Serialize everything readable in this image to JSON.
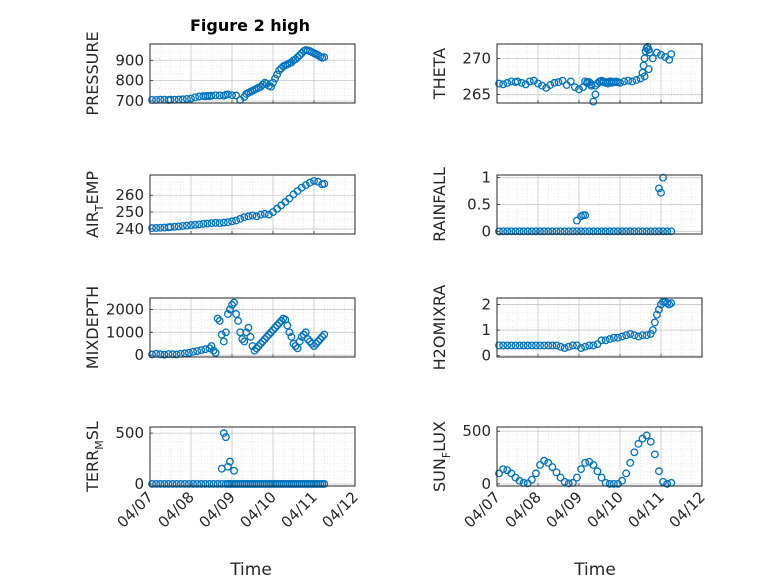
{
  "figure": {
    "title": "Figure 2 high",
    "marker_color": "#0072BD",
    "x_tick_labels": [
      "04/07",
      "04/08",
      "04/09",
      "04/10",
      "04/11",
      "04/12"
    ],
    "x_axis_label": "Time"
  },
  "chart_data": [
    {
      "type": "scatter",
      "name_label": "PRESSURE",
      "ylim": [
        690,
        980
      ],
      "yticks": [
        700,
        800,
        900
      ],
      "grid": true,
      "x": [
        0.1,
        0.3,
        0.5,
        0.7,
        0.9,
        1.0,
        1.2,
        1.4,
        1.6,
        1.8,
        2.0,
        2.2,
        2.4,
        2.6,
        2.7,
        2.8,
        2.9,
        3.0,
        3.2,
        3.4,
        3.6,
        3.7,
        3.8,
        4.0,
        4.2,
        4.4,
        4.6,
        4.7,
        4.8,
        4.9,
        5.0,
        5.1,
        5.2,
        5.3,
        5.4,
        5.5,
        5.6,
        5.7,
        5.8,
        5.9,
        6.0,
        6.1,
        6.2,
        6.3,
        6.4,
        6.5,
        6.6,
        6.7,
        6.8,
        6.9,
        7.0,
        7.1,
        7.2,
        7.3,
        7.4,
        7.5,
        7.6,
        7.7,
        7.8,
        7.9,
        8.0,
        8.1,
        8.2,
        8.3,
        8.4,
        8.5
      ],
      "y": [
        705,
        705,
        706,
        706,
        705,
        706,
        706,
        707,
        708,
        710,
        712,
        718,
        722,
        724,
        723,
        725,
        724,
        726,
        728,
        727,
        726,
        730,
        732,
        728,
        727,
        705,
        720,
        735,
        740,
        745,
        750,
        755,
        760,
        765,
        770,
        780,
        790,
        785,
        775,
        770,
        790,
        810,
        830,
        850,
        860,
        870,
        875,
        880,
        885,
        890,
        900,
        905,
        915,
        925,
        935,
        945,
        950,
        948,
        945,
        940,
        935,
        930,
        925,
        918,
        912,
        915
      ]
    },
    {
      "type": "scatter",
      "name_label": "THETA",
      "ylim": [
        263.8,
        272
      ],
      "yticks": [
        265,
        270
      ],
      "grid": true,
      "x": [
        0.1,
        0.3,
        0.5,
        0.7,
        0.9,
        1.0,
        1.2,
        1.4,
        1.6,
        1.8,
        2.0,
        2.2,
        2.4,
        2.6,
        2.8,
        3.0,
        3.2,
        3.4,
        3.6,
        3.8,
        4.0,
        4.2,
        4.4,
        4.6,
        4.8,
        5.0,
        5.2,
        5.4,
        5.6,
        5.8,
        6.0,
        6.2,
        6.4,
        6.6,
        6.8,
        7.0,
        7.2,
        7.4,
        7.6,
        7.8,
        8.0,
        8.2,
        8.4,
        8.5,
        4.3,
        4.4,
        4.5,
        4.6,
        4.7,
        4.8,
        4.9,
        5.0,
        5.1,
        5.2,
        5.3,
        5.4,
        5.5,
        5.6,
        5.7,
        5.8,
        5.9,
        7.1,
        7.15,
        7.2,
        7.25,
        7.3,
        7.35,
        7.4,
        7.45
      ],
      "y": [
        266.5,
        266.4,
        266.6,
        266.8,
        266.7,
        266.8,
        266.6,
        266.4,
        266.8,
        266.9,
        266.5,
        266.2,
        265.9,
        266.3,
        266.6,
        266.7,
        266.9,
        266.3,
        266.8,
        266.0,
        265.7,
        266.0,
        266.7,
        266.4,
        266.2,
        266.7,
        266.8,
        266.5,
        266.8,
        266.7,
        266.6,
        266.8,
        266.9,
        266.8,
        267.0,
        267.2,
        267.5,
        268.5,
        270.0,
        270.8,
        270.5,
        270.2,
        269.8,
        270.6,
        266.8,
        266.6,
        266.7,
        266.2,
        264.0,
        265.0,
        266.5,
        266.8,
        266.9,
        266.7,
        266.6,
        266.7,
        266.8,
        266.6,
        266.7,
        266.8,
        266.7,
        268,
        269,
        270,
        271,
        271.4,
        271.6,
        271.2,
        270.8
      ]
    },
    {
      "type": "scatter",
      "name_label": "AIR",
      "name_sub": "T",
      "name_suffix": "EMP",
      "ylim": [
        237,
        272
      ],
      "yticks": [
        240,
        250,
        260
      ],
      "grid": true,
      "x": [
        0.1,
        0.3,
        0.5,
        0.7,
        0.9,
        1.0,
        1.2,
        1.4,
        1.6,
        1.8,
        2.0,
        2.2,
        2.4,
        2.6,
        2.8,
        3.0,
        3.2,
        3.4,
        3.6,
        3.8,
        4.0,
        4.2,
        4.4,
        4.6,
        4.8,
        5.0,
        5.2,
        5.4,
        5.6,
        5.8,
        6.0,
        6.2,
        6.4,
        6.6,
        6.8,
        7.0,
        7.2,
        7.4,
        7.6,
        7.8,
        8.0,
        8.2,
        8.4,
        8.5
      ],
      "y": [
        240.5,
        240.6,
        240.7,
        240.8,
        241.0,
        241.1,
        241.3,
        241.5,
        241.8,
        242.0,
        242.3,
        242.5,
        242.7,
        243.0,
        243.2,
        243.4,
        243.6,
        243.5,
        243.8,
        244.0,
        244.5,
        245.0,
        246.0,
        247.0,
        247.5,
        248.0,
        247.5,
        248.5,
        249.0,
        248.5,
        250.0,
        252.0,
        254.0,
        256.0,
        258.0,
        260.5,
        262.5,
        264.5,
        266.0,
        267.5,
        268.5,
        268.0,
        266.5,
        266.8
      ]
    },
    {
      "type": "scatter",
      "name_label": "RAINFALL",
      "ylim": [
        -0.05,
        1.05
      ],
      "yticks": [
        0,
        0.5,
        1
      ],
      "grid": true,
      "x": [
        0.1,
        0.3,
        0.5,
        0.7,
        0.9,
        1.1,
        1.3,
        1.5,
        1.7,
        1.9,
        2.1,
        2.3,
        2.5,
        2.7,
        2.9,
        3.1,
        3.3,
        3.5,
        3.7,
        3.9,
        4.1,
        4.3,
        4.5,
        4.7,
        4.9,
        5.1,
        5.3,
        5.5,
        5.7,
        5.9,
        6.1,
        6.3,
        6.5,
        6.7,
        6.9,
        7.1,
        7.3,
        7.5,
        7.7,
        7.9,
        8.1,
        8.3,
        8.5,
        3.9,
        4.1,
        4.2,
        4.3,
        7.9,
        8.0,
        8.1
      ],
      "y": [
        0,
        0,
        0,
        0,
        0,
        0,
        0,
        0,
        0,
        0,
        0,
        0,
        0,
        0,
        0,
        0,
        0,
        0,
        0,
        0,
        0,
        0,
        0,
        0,
        0,
        0,
        0,
        0,
        0,
        0,
        0,
        0,
        0,
        0,
        0,
        0,
        0,
        0,
        0,
        0,
        0,
        0,
        0,
        0.2,
        0.28,
        0.3,
        0.3,
        0.8,
        0.72,
        1.0
      ]
    },
    {
      "type": "scatter",
      "name_label": "MIXDEPTH",
      "ylim": [
        -80,
        2500
      ],
      "yticks": [
        0,
        1000,
        2000
      ],
      "grid": true,
      "x": [
        0.1,
        0.3,
        0.5,
        0.7,
        0.9,
        1.1,
        1.3,
        1.5,
        1.7,
        1.9,
        2.1,
        2.3,
        2.5,
        2.7,
        2.9,
        3.0,
        3.1,
        3.2,
        3.3,
        3.4,
        3.5,
        3.6,
        3.7,
        3.8,
        3.9,
        4.0,
        4.1,
        4.2,
        4.3,
        4.4,
        4.5,
        4.6,
        4.7,
        4.8,
        4.9,
        5.0,
        5.1,
        5.2,
        5.3,
        5.4,
        5.5,
        5.6,
        5.7,
        5.8,
        5.9,
        6.0,
        6.1,
        6.2,
        6.3,
        6.4,
        6.5,
        6.6,
        6.7,
        6.8,
        6.9,
        7.0,
        7.1,
        7.2,
        7.3,
        7.4,
        7.5,
        7.6,
        7.7,
        7.8,
        7.9,
        8.0,
        8.1,
        8.2,
        8.3,
        8.4,
        8.5
      ],
      "y": [
        30,
        60,
        40,
        20,
        50,
        40,
        30,
        60,
        80,
        100,
        150,
        180,
        220,
        260,
        300,
        400,
        200,
        100,
        1600,
        1500,
        900,
        600,
        1000,
        1800,
        2000,
        2200,
        2300,
        1800,
        1500,
        1000,
        700,
        600,
        1000,
        1200,
        800,
        400,
        200,
        300,
        400,
        500,
        600,
        700,
        800,
        900,
        1000,
        1100,
        1200,
        1300,
        1400,
        1500,
        1600,
        1550,
        1300,
        1000,
        800,
        500,
        400,
        300,
        600,
        800,
        900,
        1000,
        700,
        600,
        500,
        400,
        500,
        600,
        700,
        800,
        900
      ]
    },
    {
      "type": "scatter",
      "name_label": "H2OMIXRA",
      "ylim": [
        -0.05,
        2.25
      ],
      "yticks": [
        0,
        1,
        2
      ],
      "grid": true,
      "x": [
        0.1,
        0.3,
        0.5,
        0.7,
        0.9,
        1.1,
        1.3,
        1.5,
        1.7,
        1.9,
        2.1,
        2.3,
        2.5,
        2.7,
        2.9,
        3.1,
        3.3,
        3.5,
        3.7,
        3.9,
        4.1,
        4.3,
        4.5,
        4.7,
        4.9,
        5.1,
        5.3,
        5.5,
        5.7,
        5.9,
        6.1,
        6.3,
        6.5,
        6.7,
        6.9,
        7.1,
        7.3,
        7.5,
        7.6,
        7.7,
        7.8,
        7.9,
        8.0,
        8.1,
        8.2,
        8.3,
        8.4,
        8.5
      ],
      "y": [
        0.4,
        0.4,
        0.4,
        0.4,
        0.4,
        0.4,
        0.4,
        0.4,
        0.4,
        0.4,
        0.4,
        0.4,
        0.4,
        0.4,
        0.4,
        0.35,
        0.3,
        0.35,
        0.4,
        0.4,
        0.3,
        0.35,
        0.4,
        0.4,
        0.45,
        0.6,
        0.6,
        0.65,
        0.7,
        0.7,
        0.75,
        0.8,
        0.85,
        0.8,
        0.75,
        0.8,
        0.8,
        0.85,
        1.0,
        1.3,
        1.6,
        1.8,
        2.0,
        2.1,
        2.1,
        2.05,
        2.0,
        2.05
      ]
    },
    {
      "type": "scatter",
      "name_label": "TERR",
      "name_sub": "M",
      "name_suffix": "SL",
      "ylim": [
        -20,
        560
      ],
      "yticks": [
        0,
        500
      ],
      "grid": true,
      "x": [
        0.1,
        0.3,
        0.5,
        0.7,
        0.9,
        1.1,
        1.3,
        1.5,
        1.7,
        1.9,
        2.1,
        2.3,
        2.5,
        2.7,
        2.9,
        3.1,
        3.3,
        3.5,
        3.7,
        3.8,
        3.9,
        4.0,
        4.1,
        4.2,
        4.3,
        4.4,
        4.5,
        4.6,
        4.7,
        4.8,
        4.9,
        5.0,
        5.1,
        5.2,
        5.3,
        5.4,
        5.5,
        5.6,
        5.7,
        5.8,
        5.9,
        6.0,
        6.1,
        6.2,
        6.3,
        6.4,
        6.5,
        6.6,
        6.7,
        6.8,
        6.9,
        7.0,
        7.1,
        7.2,
        7.3,
        7.4,
        7.5,
        7.6,
        7.7,
        7.8,
        7.9,
        8.0,
        8.1,
        8.2,
        8.3,
        8.4,
        8.5,
        3.5,
        3.6,
        3.7,
        3.8,
        3.9,
        4.1
      ],
      "y": [
        0,
        0,
        0,
        0,
        0,
        0,
        0,
        0,
        0,
        0,
        0,
        0,
        0,
        0,
        0,
        0,
        0,
        0,
        0,
        0,
        0,
        0,
        0,
        0,
        0,
        0,
        0,
        0,
        0,
        0,
        0,
        0,
        0,
        0,
        0,
        0,
        0,
        0,
        0,
        0,
        0,
        0,
        0,
        0,
        0,
        0,
        0,
        0,
        0,
        0,
        0,
        0,
        0,
        0,
        0,
        0,
        0,
        0,
        0,
        0,
        0,
        0,
        0,
        0,
        0,
        0,
        0,
        150,
        500,
        460,
        170,
        220,
        130
      ]
    },
    {
      "type": "scatter",
      "name_label": "SUN",
      "name_sub": "F",
      "name_suffix": "LUX",
      "ylim": [
        -20,
        540
      ],
      "yticks": [
        0,
        500
      ],
      "grid": true,
      "x": [
        0.1,
        0.3,
        0.5,
        0.7,
        0.9,
        1.1,
        1.3,
        1.5,
        1.7,
        1.9,
        2.1,
        2.3,
        2.5,
        2.7,
        2.9,
        3.1,
        3.3,
        3.5,
        3.7,
        3.9,
        4.1,
        4.3,
        4.5,
        4.7,
        4.9,
        5.1,
        5.3,
        5.5,
        5.7,
        5.9,
        6.1,
        6.3,
        6.5,
        6.7,
        6.9,
        7.1,
        7.3,
        7.5,
        7.7,
        7.9,
        8.1,
        8.3,
        8.5
      ],
      "y": [
        100,
        140,
        130,
        100,
        60,
        30,
        10,
        5,
        40,
        100,
        180,
        220,
        200,
        160,
        110,
        60,
        20,
        5,
        10,
        60,
        140,
        200,
        210,
        180,
        120,
        60,
        10,
        0,
        0,
        0,
        30,
        100,
        200,
        300,
        380,
        430,
        460,
        400,
        280,
        120,
        20,
        0,
        10
      ]
    }
  ],
  "panels": [
    {
      "ylabel": "PRESSURE"
    },
    {
      "ylabel": "THETA"
    },
    {
      "ylabel_main": "AIR",
      "ylabel_sub": "T",
      "ylabel_rest": "EMP"
    },
    {
      "ylabel": "RAINFALL"
    },
    {
      "ylabel": "MIXDEPTH"
    },
    {
      "ylabel": "H2OMIXRA"
    },
    {
      "ylabel_main": "TERR",
      "ylabel_sub": "M",
      "ylabel_rest": "SL"
    },
    {
      "ylabel_main": "SUN",
      "ylabel_sub": "F",
      "ylabel_rest": "LUX"
    }
  ]
}
